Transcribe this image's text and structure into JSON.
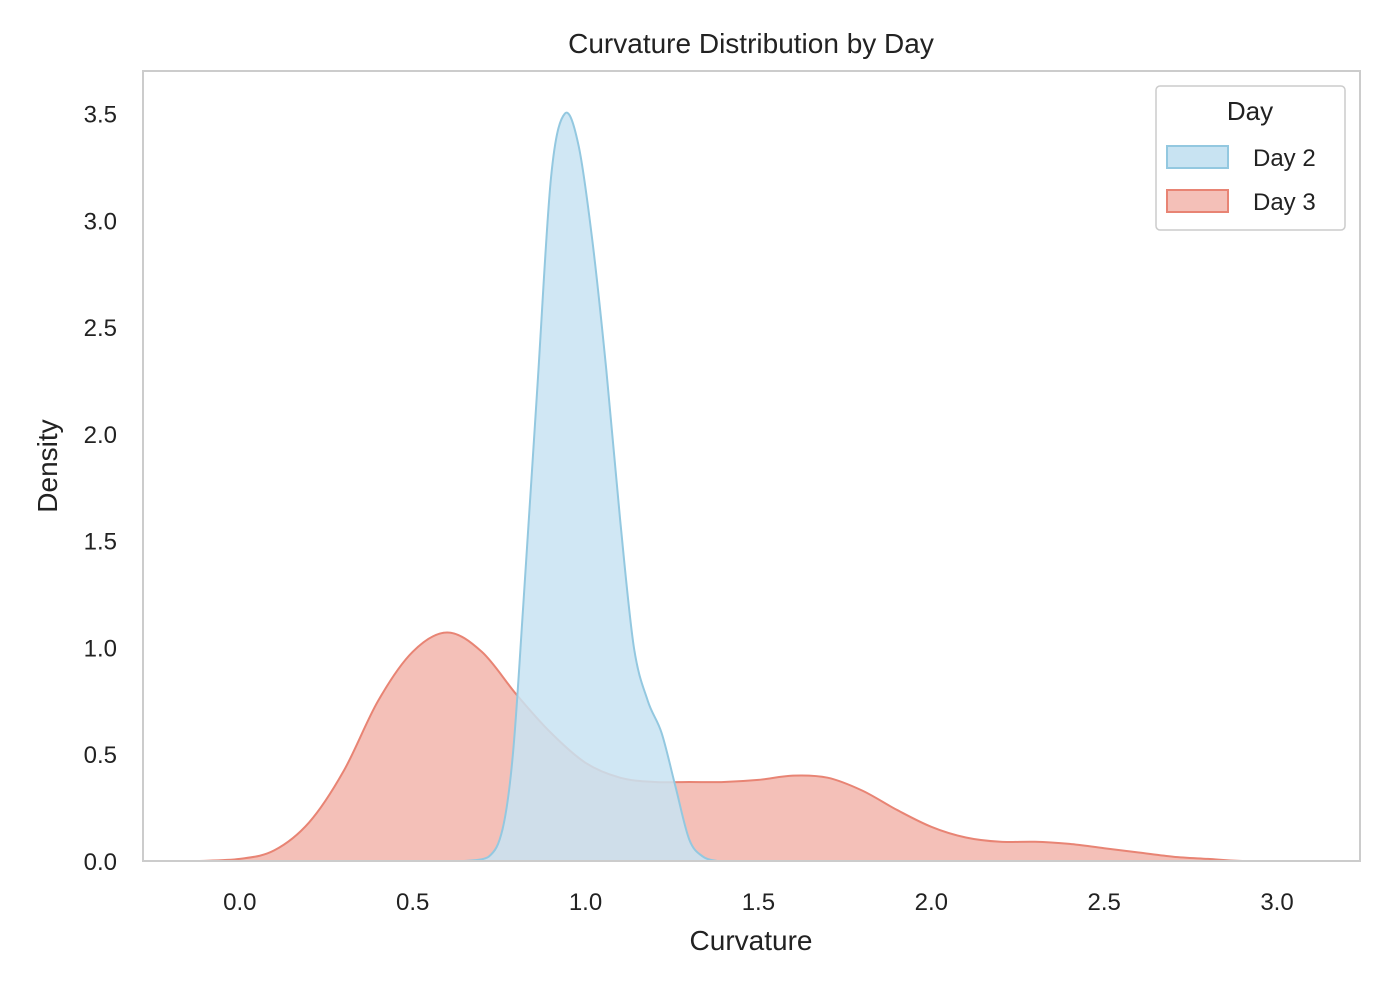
{
  "chart_data": {
    "type": "area",
    "title": "Curvature Distribution by Day",
    "xlabel": "Curvature",
    "ylabel": "Density",
    "xlim": [
      -0.28,
      3.24
    ],
    "ylim": [
      0.0,
      3.7
    ],
    "xticks": [
      "0.0",
      "0.5",
      "1.0",
      "1.5",
      "2.0",
      "2.5",
      "3.0"
    ],
    "yticks": [
      "0.0",
      "0.5",
      "1.0",
      "1.5",
      "2.0",
      "2.5",
      "3.0",
      "3.5"
    ],
    "grid": false,
    "legend": {
      "title": "Day",
      "placement": "top-right"
    },
    "series": [
      {
        "name": "Day 2",
        "fill": "#c8e3f2",
        "stroke": "#93c8e0",
        "points": [
          [
            0.65,
            0.0
          ],
          [
            0.72,
            0.02
          ],
          [
            0.76,
            0.15
          ],
          [
            0.79,
            0.5
          ],
          [
            0.82,
            1.2
          ],
          [
            0.86,
            2.2
          ],
          [
            0.9,
            3.2
          ],
          [
            0.94,
            3.5
          ],
          [
            0.98,
            3.35
          ],
          [
            1.02,
            2.9
          ],
          [
            1.06,
            2.3
          ],
          [
            1.1,
            1.6
          ],
          [
            1.14,
            1.0
          ],
          [
            1.18,
            0.75
          ],
          [
            1.22,
            0.6
          ],
          [
            1.26,
            0.35
          ],
          [
            1.3,
            0.1
          ],
          [
            1.34,
            0.02
          ],
          [
            1.38,
            0.0
          ]
        ]
      },
      {
        "name": "Day 3",
        "fill": "#f4c0b8",
        "stroke": "#e88474",
        "points": [
          [
            -0.12,
            0.0
          ],
          [
            0.0,
            0.01
          ],
          [
            0.1,
            0.05
          ],
          [
            0.2,
            0.18
          ],
          [
            0.3,
            0.42
          ],
          [
            0.4,
            0.75
          ],
          [
            0.5,
            0.98
          ],
          [
            0.6,
            1.07
          ],
          [
            0.7,
            0.98
          ],
          [
            0.8,
            0.78
          ],
          [
            0.9,
            0.6
          ],
          [
            1.0,
            0.46
          ],
          [
            1.1,
            0.39
          ],
          [
            1.2,
            0.37
          ],
          [
            1.3,
            0.37
          ],
          [
            1.4,
            0.37
          ],
          [
            1.5,
            0.38
          ],
          [
            1.6,
            0.4
          ],
          [
            1.7,
            0.39
          ],
          [
            1.8,
            0.33
          ],
          [
            1.9,
            0.24
          ],
          [
            2.0,
            0.16
          ],
          [
            2.1,
            0.11
          ],
          [
            2.2,
            0.09
          ],
          [
            2.3,
            0.09
          ],
          [
            2.4,
            0.08
          ],
          [
            2.5,
            0.06
          ],
          [
            2.6,
            0.04
          ],
          [
            2.7,
            0.02
          ],
          [
            2.8,
            0.01
          ],
          [
            2.9,
            0.0
          ],
          [
            3.1,
            0.0
          ]
        ]
      }
    ],
    "overlap_color": "#bfc5d0",
    "axes_color": "#cccccc"
  }
}
